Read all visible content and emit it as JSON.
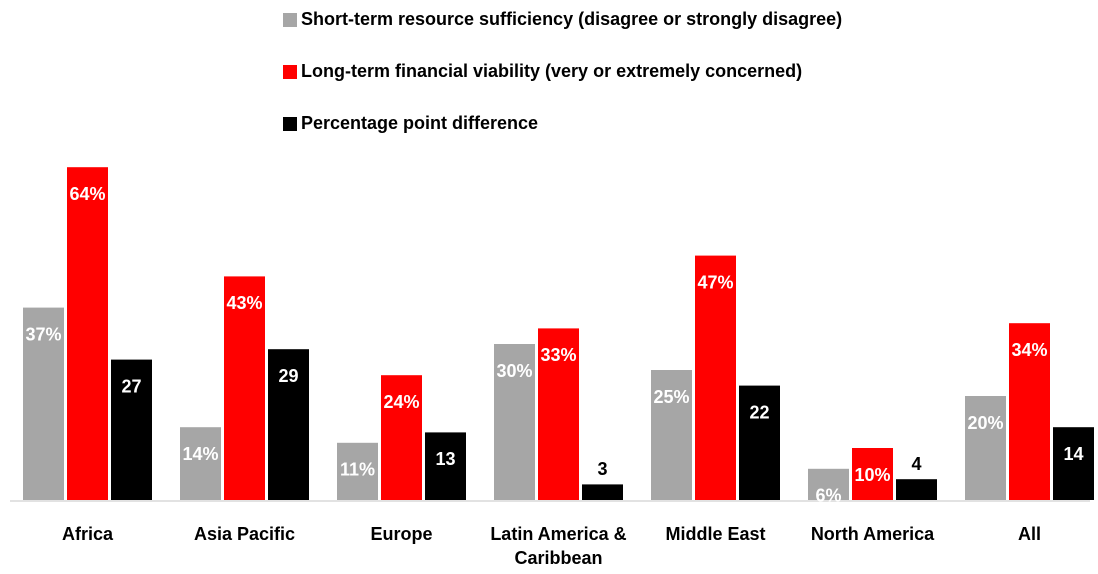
{
  "chart_data": {
    "type": "bar",
    "categories": [
      "Africa",
      "Asia Pacific",
      "Europe",
      "Latin America & Caribbean",
      "Middle East",
      "North America",
      "All"
    ],
    "series": [
      {
        "name": "Short-term resource sufficiency (disagree or strongly disagree)",
        "color": "#a6a6a6",
        "values": [
          37,
          14,
          11,
          30,
          25,
          6,
          20
        ],
        "value_labels": [
          "37%",
          "14%",
          "11%",
          "30%",
          "25%",
          "6%",
          "20%"
        ]
      },
      {
        "name": "Long-term financial viability (very or extremely concerned)",
        "color": "#ff0000",
        "values": [
          64,
          43,
          24,
          33,
          47,
          10,
          34
        ],
        "value_labels": [
          "64%",
          "43%",
          "24%",
          "33%",
          "47%",
          "10%",
          "34%"
        ]
      },
      {
        "name": "Percentage point difference",
        "color": "#000000",
        "values": [
          27,
          29,
          13,
          3,
          22,
          4,
          14
        ]
      }
    ]
  }
}
